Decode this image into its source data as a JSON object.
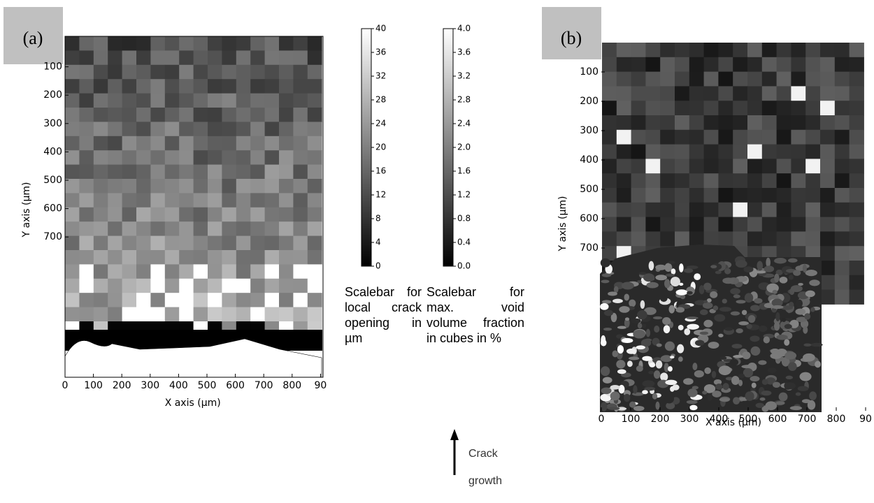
{
  "panels": [
    {
      "label": "(a)",
      "x_axis_label": "X axis (μm)",
      "y_axis_label": "Y axis (μm)",
      "xticks": [
        "0",
        "100",
        "200",
        "300",
        "400",
        "500",
        "600",
        "700",
        "800",
        "90"
      ],
      "yticks": [
        "100",
        "200",
        "300",
        "400",
        "500",
        "600",
        "700"
      ]
    },
    {
      "label": "(b)",
      "x_axis_label": "X axis (μm)",
      "y_axis_label": "Y axis (μm)",
      "xticks": [
        "0",
        "100",
        "200",
        "300",
        "400",
        "500",
        "600",
        "700",
        "800",
        "90"
      ],
      "yticks": [
        "100",
        "200",
        "300",
        "400",
        "500",
        "600",
        "700"
      ]
    }
  ],
  "colorbars": [
    {
      "ticks": [
        "0",
        "4",
        "8",
        "12",
        "16",
        "20",
        "24",
        "28",
        "32",
        "36",
        "40"
      ],
      "caption": "Scalebar for local crack opening in µm"
    },
    {
      "ticks": [
        "0.0",
        "0.4",
        "0.8",
        "1.2",
        "1.6",
        "2.0",
        "2.4",
        "2.8",
        "3.2",
        "3.6",
        "4.0"
      ],
      "caption": "Scalebar for max. void volume fraction in cubes in %"
    }
  ],
  "annotation": {
    "line1": "Crack",
    "line2": "growth"
  }
}
